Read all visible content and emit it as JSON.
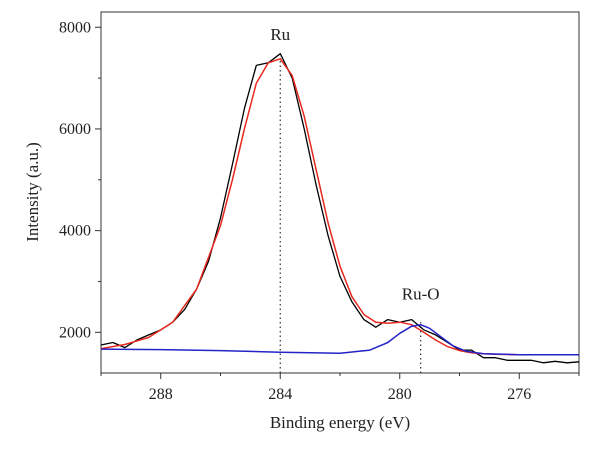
{
  "chart_data": {
    "type": "line",
    "title": "",
    "xlabel": "Binding energy (eV)",
    "ylabel": "Intensity (a.u.)",
    "xlim": [
      290,
      274
    ],
    "ylim": [
      1200,
      8300
    ],
    "x_reversed": true,
    "grid": false,
    "legend": "none",
    "xticks": [
      288,
      284,
      280,
      276
    ],
    "xtick_labels": [
      "288",
      "284",
      "280",
      "276"
    ],
    "yticks": [
      2000,
      4000,
      6000,
      8000
    ],
    "ytick_labels": [
      "2000",
      "4000",
      "6000",
      "8000"
    ],
    "annotations": [
      {
        "text": "Ru",
        "x": 284.0,
        "y": 7750
      },
      {
        "text": "Ru-O",
        "x": 279.3,
        "y": 2650
      }
    ],
    "reference_lines": [
      {
        "x": 284.0,
        "y_from": 1200,
        "y_to": 7380
      },
      {
        "x": 279.3,
        "y_from": 1200,
        "y_to": 2200
      }
    ],
    "series": [
      {
        "color": "#000000",
        "style": "measured",
        "x": [
          290.0,
          289.6,
          289.2,
          288.8,
          288.4,
          288.0,
          287.6,
          287.2,
          286.8,
          286.4,
          286.0,
          285.6,
          285.2,
          284.8,
          284.4,
          284.0,
          283.6,
          283.2,
          282.8,
          282.4,
          282.0,
          281.6,
          281.2,
          280.8,
          280.4,
          280.0,
          279.6,
          279.2,
          278.8,
          278.4,
          278.0,
          277.6,
          277.2,
          276.8,
          276.4,
          276.0,
          275.6,
          275.2,
          274.8,
          274.4,
          274.0
        ],
        "y": [
          1750,
          1800,
          1700,
          1850,
          1950,
          2050,
          2200,
          2450,
          2850,
          3400,
          4250,
          5300,
          6400,
          7250,
          7300,
          7480,
          7000,
          6000,
          4900,
          3900,
          3100,
          2600,
          2250,
          2100,
          2250,
          2200,
          2250,
          2050,
          1950,
          1800,
          1650,
          1650,
          1500,
          1500,
          1450,
          1450,
          1450,
          1400,
          1430,
          1400,
          1420
        ]
      },
      {
        "color": "#e8281e",
        "style": "fit envelope",
        "x": [
          290.0,
          289.2,
          288.4,
          287.6,
          286.8,
          286.0,
          285.6,
          285.2,
          284.8,
          284.4,
          284.0,
          283.6,
          283.2,
          282.8,
          282.4,
          282.0,
          281.6,
          281.2,
          280.8,
          280.4,
          280.0,
          279.6,
          279.2,
          278.8,
          278.4,
          278.0,
          277.6,
          277.2,
          276.8,
          276.0,
          275.0,
          274.0
        ],
        "y": [
          1680,
          1760,
          1900,
          2200,
          2850,
          4100,
          5000,
          6000,
          6900,
          7300,
          7380,
          7050,
          6250,
          5200,
          4150,
          3300,
          2700,
          2350,
          2200,
          2180,
          2200,
          2150,
          2000,
          1850,
          1720,
          1640,
          1600,
          1580,
          1570,
          1560,
          1560,
          1560
        ]
      },
      {
        "color": "#2323c8",
        "style": "fit component",
        "x": [
          290.0,
          288.0,
          286.0,
          284.0,
          282.0,
          281.0,
          280.4,
          280.0,
          279.6,
          279.3,
          279.0,
          278.6,
          278.2,
          277.8,
          277.2,
          276.0,
          274.0
        ],
        "y": [
          1670,
          1660,
          1640,
          1610,
          1590,
          1650,
          1800,
          1980,
          2120,
          2150,
          2080,
          1900,
          1730,
          1630,
          1580,
          1560,
          1560
        ]
      }
    ]
  }
}
